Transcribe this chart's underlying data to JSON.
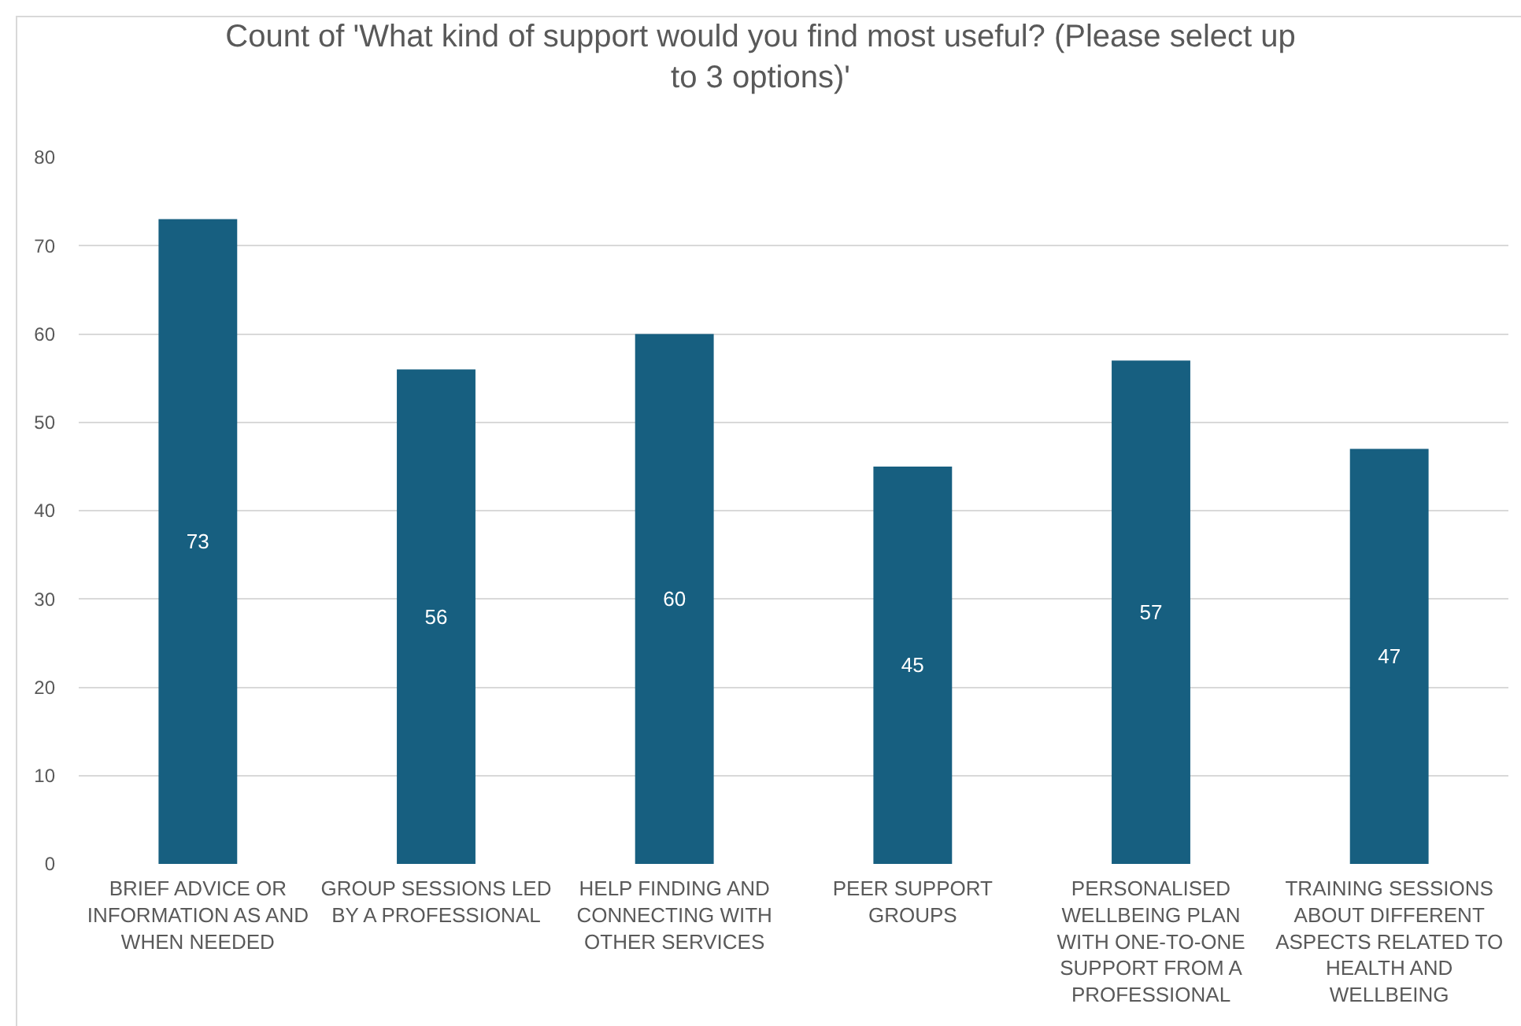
{
  "chart_data": {
    "type": "bar",
    "title": "Count of 'What kind of support would you find most useful? (Please select up to 3 options)'",
    "categories": [
      "BRIEF ADVICE OR INFORMATION AS AND WHEN NEEDED",
      "GROUP SESSIONS LED BY A PROFESSIONAL",
      "HELP FINDING AND CONNECTING WITH OTHER SERVICES",
      "PEER SUPPORT GROUPS",
      "PERSONALISED WELLBEING PLAN WITH ONE-TO-ONE SUPPORT FROM A PROFESSIONAL",
      "TRAINING SESSIONS ABOUT DIFFERENT ASPECTS RELATED TO HEALTH AND WELLBEING"
    ],
    "values": [
      73,
      56,
      60,
      45,
      57,
      47
    ],
    "color": "#175f80",
    "ylim": [
      0,
      80
    ],
    "yticks": [
      0,
      10,
      20,
      30,
      40,
      50,
      60,
      70,
      80
    ],
    "grid": "y",
    "data_labels": true
  }
}
